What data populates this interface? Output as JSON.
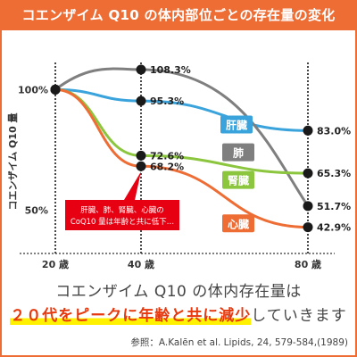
{
  "title": "コエンザイム Q10 の体内部位ごとの存在量の変化",
  "chart_data": {
    "type": "line",
    "ylabel": "コエンザイム Q10 量",
    "x_ticks": [
      {
        "value": 20,
        "label": "20 歳"
      },
      {
        "value": 40,
        "label": "40 歳"
      },
      {
        "value": 80,
        "label": "80 歳"
      }
    ],
    "y_ticks": [
      {
        "value": 100,
        "label": "100%"
      },
      {
        "value": 50,
        "label": "50%"
      }
    ],
    "ylim": [
      32,
      108.3
    ],
    "grid": false,
    "series": [
      {
        "name": "肝臓",
        "color": "#3aa3db",
        "points": [
          [
            20,
            100
          ],
          [
            40,
            95.3
          ],
          [
            80,
            83.0
          ]
        ],
        "labels": [
          "",
          "95.3%",
          "83.0%"
        ]
      },
      {
        "name": "肺",
        "color": "#7f7f7f",
        "points": [
          [
            20,
            100
          ],
          [
            40,
            108.3
          ],
          [
            80,
            51.7
          ]
        ],
        "labels": [
          "",
          "108.3%",
          "51.7%"
        ]
      },
      {
        "name": "腎臓",
        "color": "#8cc63f",
        "points": [
          [
            20,
            100
          ],
          [
            40,
            72.6
          ],
          [
            80,
            65.3
          ]
        ],
        "labels": [
          "",
          "72.6%",
          "65.3%"
        ]
      },
      {
        "name": "心臓",
        "color": "#ed6d35",
        "points": [
          [
            20,
            100
          ],
          [
            40,
            68.2
          ],
          [
            80,
            42.9
          ]
        ],
        "labels": [
          "",
          "68.2%",
          "42.9%"
        ]
      }
    ],
    "annotation": {
      "line1": "肝臓、肺、腎臓、心臓の",
      "line2": "CoQ10 量は年齢と共に低下…",
      "color": "#e60012"
    }
  },
  "caption": {
    "line1": "コエンザイム Q10 の体内存在量は",
    "line2_highlight": "２０代をピークに年齢と共に減少",
    "line2_rest": "していきます"
  },
  "reference": "参照：A.Kalēn et al. Lipids, 24, 579-584,(1989)"
}
